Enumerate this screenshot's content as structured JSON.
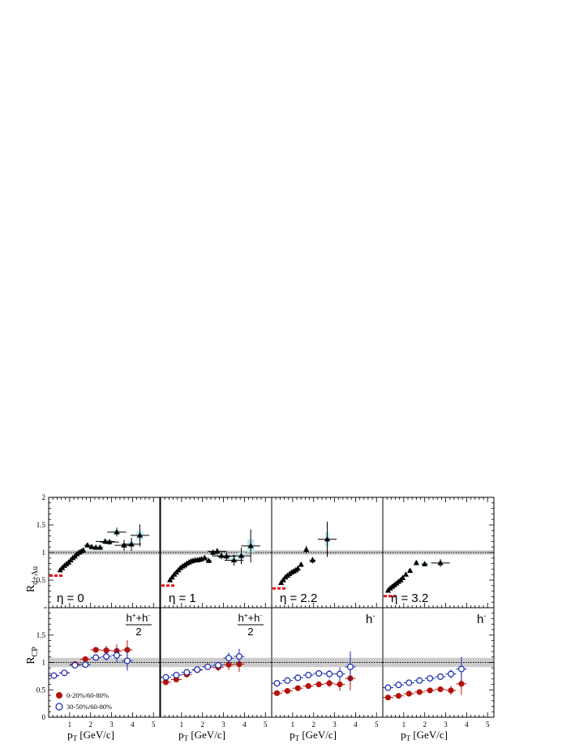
{
  "figure": {
    "ylabel_top_main": "R",
    "ylabel_top_sub": "d+Au",
    "ylabel_bottom_main": "R",
    "ylabel_bottom_sub": "CP",
    "xlabel_main": "p",
    "xlabel_sub": "T",
    "xlabel_rest": " [GeV/c]",
    "legend": [
      {
        "label": "0-20%/60-80%",
        "color": "#b5120c",
        "marker": "filled-circle"
      },
      {
        "label": "30-50%/60-80%",
        "color": "#1426b0",
        "marker": "open-circle"
      }
    ],
    "colors": {
      "rdau_marker": "#000000",
      "syst_band": "#bde8f2",
      "norm_band": "#cccccc",
      "red_dash": "#e8141b",
      "central_red": "#b5120c",
      "peripheral_blue": "#1426b0"
    }
  },
  "chart_data": [
    {
      "panel": "top-eta-0",
      "type": "scatter",
      "annotation": "η = 0",
      "xlim": [
        0,
        5.3
      ],
      "ylim": [
        0,
        2
      ],
      "xticks": [
        1,
        2,
        3,
        4,
        5
      ],
      "yticks": [
        "",
        "0.5",
        "1",
        "1.5",
        "2"
      ],
      "reference_line": 1,
      "series": [
        {
          "marker": "filled-triangle",
          "x": [
            0.55,
            0.65,
            0.75,
            0.85,
            0.95,
            1.05,
            1.15,
            1.25,
            1.35,
            1.45,
            1.55,
            1.65,
            1.85,
            2.05,
            2.25,
            2.45,
            2.7,
            2.9,
            3.25,
            3.6,
            3.95,
            4.35
          ],
          "y": [
            0.68,
            0.72,
            0.76,
            0.79,
            0.82,
            0.86,
            0.9,
            0.93,
            0.97,
            1.0,
            1.02,
            1.04,
            1.13,
            1.1,
            1.09,
            1.09,
            1.2,
            1.19,
            1.37,
            1.13,
            1.15,
            1.31
          ],
          "yerr": [
            0,
            0,
            0,
            0,
            0,
            0,
            0,
            0,
            0,
            0,
            0,
            0,
            0.03,
            0.03,
            0.03,
            0.04,
            0.05,
            0.05,
            0.08,
            0.1,
            0.12,
            0.2
          ]
        }
      ]
    },
    {
      "panel": "top-eta-1",
      "type": "scatter",
      "annotation": "η = 1",
      "xlim": [
        0,
        5.3
      ],
      "ylim": [
        0,
        2
      ],
      "xticks": [
        1,
        2,
        3,
        4,
        5
      ],
      "reference_line": 1,
      "series": [
        {
          "marker": "filled-triangle",
          "x": [
            0.45,
            0.55,
            0.65,
            0.75,
            0.85,
            0.95,
            1.05,
            1.15,
            1.25,
            1.35,
            1.45,
            1.55,
            1.65,
            1.75,
            1.85,
            1.95,
            2.1,
            2.3,
            2.5,
            2.7,
            2.9,
            3.15,
            3.5,
            3.85,
            4.3
          ],
          "y": [
            0.5,
            0.55,
            0.6,
            0.64,
            0.68,
            0.72,
            0.75,
            0.77,
            0.8,
            0.82,
            0.84,
            0.85,
            0.86,
            0.86,
            0.87,
            0.88,
            0.9,
            0.85,
            1.0,
            1.02,
            0.94,
            0.93,
            0.86,
            0.94,
            1.12
          ],
          "yerr": [
            0,
            0,
            0,
            0,
            0,
            0,
            0,
            0,
            0,
            0,
            0,
            0,
            0,
            0,
            0,
            0,
            0.03,
            0.04,
            0.05,
            0.06,
            0.06,
            0.07,
            0.1,
            0.15,
            0.3
          ]
        }
      ]
    },
    {
      "panel": "top-eta-2.2",
      "type": "scatter",
      "annotation": "η = 2.2",
      "xlim": [
        0,
        5.3
      ],
      "ylim": [
        0,
        2
      ],
      "xticks": [
        1,
        2,
        3,
        4,
        5
      ],
      "reference_line": 1,
      "series": [
        {
          "marker": "filled-triangle",
          "x": [
            0.45,
            0.55,
            0.65,
            0.75,
            0.85,
            0.95,
            1.05,
            1.15,
            1.25,
            1.4,
            1.65,
            1.95,
            2.65
          ],
          "y": [
            0.45,
            0.5,
            0.55,
            0.58,
            0.61,
            0.64,
            0.66,
            0.68,
            0.71,
            0.78,
            1.05,
            0.86,
            1.24
          ],
          "yerr": [
            0,
            0,
            0,
            0,
            0,
            0,
            0,
            0,
            0,
            0.04,
            0.07,
            0.06,
            0.32
          ]
        }
      ]
    },
    {
      "panel": "top-eta-3.2",
      "type": "scatter",
      "annotation": "η = 3.2",
      "xlim": [
        0,
        5.3
      ],
      "ylim": [
        0,
        2
      ],
      "xticks": [
        1,
        2,
        3,
        4,
        5
      ],
      "reference_line": 1,
      "series": [
        {
          "marker": "filled-triangle",
          "x": [
            0.25,
            0.35,
            0.45,
            0.55,
            0.65,
            0.75,
            0.85,
            0.95,
            1.1,
            1.3,
            1.6,
            2.0,
            2.75
          ],
          "y": [
            0.31,
            0.35,
            0.38,
            0.41,
            0.44,
            0.47,
            0.5,
            0.54,
            0.6,
            0.67,
            0.81,
            0.79,
            0.81
          ],
          "yerr": [
            0,
            0,
            0,
            0,
            0,
            0,
            0,
            0,
            0,
            0.02,
            0.03,
            0.04,
            0.07
          ]
        }
      ]
    },
    {
      "panel": "bottom-hpm-1",
      "type": "scatter",
      "label_numerator": "h",
      "label_sup1": "+",
      "label_plus": "+h",
      "label_sup2": "-",
      "label_denominator": "2",
      "xlim": [
        0,
        5.3
      ],
      "ylim": [
        0,
        2
      ],
      "xticks": [
        "",
        "1",
        "2",
        "3",
        "4",
        "5"
      ],
      "yticks": [
        "0",
        "0.5",
        "1",
        "1.5"
      ],
      "reference_line": 1,
      "series": [
        {
          "name": "0-20%/60-80%",
          "marker": "filled-circle",
          "x": [
            0.25,
            0.75,
            1.25,
            1.75,
            2.25,
            2.75,
            3.25,
            3.75
          ],
          "y": [
            0.76,
            0.81,
            0.97,
            1.06,
            1.23,
            1.22,
            1.21,
            1.23
          ],
          "yerr": [
            0.02,
            0.02,
            0.03,
            0.04,
            0.05,
            0.08,
            0.12,
            0.18
          ]
        },
        {
          "name": "30-50%/60-80%",
          "marker": "open-circle",
          "x": [
            0.25,
            0.75,
            1.25,
            1.75,
            2.25,
            2.75,
            3.25,
            3.75
          ],
          "y": [
            0.76,
            0.81,
            0.95,
            0.96,
            1.09,
            1.11,
            1.13,
            1.03
          ],
          "yerr": [
            0.02,
            0.02,
            0.03,
            0.04,
            0.05,
            0.08,
            0.12,
            0.18
          ]
        }
      ]
    },
    {
      "panel": "bottom-hpm-2",
      "type": "scatter",
      "label_numerator": "h",
      "label_sup1": "+",
      "label_plus": "+h",
      "label_sup2": "-",
      "label_denominator": "2",
      "xlim": [
        0,
        5.3
      ],
      "ylim": [
        0,
        2
      ],
      "xticks": [
        "",
        "1",
        "2",
        "3",
        "4",
        "5"
      ],
      "reference_line": 1,
      "series": [
        {
          "name": "0-20%/60-80%",
          "marker": "filled-circle",
          "x": [
            0.25,
            0.75,
            1.25,
            1.75,
            2.25,
            2.75,
            3.25,
            3.75
          ],
          "y": [
            0.64,
            0.69,
            0.78,
            0.86,
            0.92,
            0.91,
            0.96,
            0.97
          ],
          "yerr": [
            0.02,
            0.02,
            0.03,
            0.03,
            0.04,
            0.06,
            0.1,
            0.14
          ]
        },
        {
          "name": "30-50%/60-80%",
          "marker": "open-circle",
          "x": [
            0.25,
            0.75,
            1.25,
            1.75,
            2.25,
            2.75,
            3.25,
            3.75
          ],
          "y": [
            0.73,
            0.77,
            0.82,
            0.87,
            0.92,
            0.95,
            1.08,
            1.11
          ],
          "yerr": [
            0.02,
            0.02,
            0.03,
            0.03,
            0.04,
            0.06,
            0.1,
            0.14
          ]
        }
      ]
    },
    {
      "panel": "bottom-hminus-1",
      "type": "scatter",
      "label_main": "h",
      "label_sup": "-",
      "xlim": [
        0,
        5.3
      ],
      "ylim": [
        0,
        2
      ],
      "xticks": [
        "",
        "1",
        "2",
        "3",
        "4",
        "5"
      ],
      "reference_line": 1,
      "series": [
        {
          "name": "0-20%/60-80%",
          "marker": "filled-circle",
          "x": [
            0.25,
            0.75,
            1.25,
            1.75,
            2.25,
            2.75,
            3.25,
            3.75
          ],
          "y": [
            0.44,
            0.48,
            0.53,
            0.57,
            0.6,
            0.62,
            0.6,
            0.71
          ],
          "yerr": [
            0.02,
            0.02,
            0.03,
            0.04,
            0.05,
            0.07,
            0.12,
            0.22
          ]
        },
        {
          "name": "30-50%/60-80%",
          "marker": "open-circle",
          "x": [
            0.25,
            0.75,
            1.25,
            1.75,
            2.25,
            2.75,
            3.25,
            3.75
          ],
          "y": [
            0.62,
            0.67,
            0.72,
            0.77,
            0.8,
            0.79,
            0.79,
            0.92
          ],
          "yerr": [
            0.02,
            0.02,
            0.03,
            0.04,
            0.05,
            0.07,
            0.12,
            0.28
          ]
        }
      ]
    },
    {
      "panel": "bottom-hminus-2",
      "type": "scatter",
      "label_main": "h",
      "label_sup": "-",
      "xlim": [
        0,
        5.3
      ],
      "ylim": [
        0,
        2
      ],
      "xticks": [
        "",
        "1",
        "2",
        "3",
        "4",
        "5"
      ],
      "reference_line": 1,
      "series": [
        {
          "name": "0-20%/60-80%",
          "marker": "filled-circle",
          "x": [
            0.25,
            0.75,
            1.25,
            1.75,
            2.25,
            2.75,
            3.25,
            3.75
          ],
          "y": [
            0.36,
            0.39,
            0.43,
            0.46,
            0.49,
            0.51,
            0.49,
            0.61
          ],
          "yerr": [
            0.02,
            0.02,
            0.03,
            0.03,
            0.04,
            0.05,
            0.08,
            0.2
          ]
        },
        {
          "name": "30-50%/60-80%",
          "marker": "open-circle",
          "x": [
            0.25,
            0.75,
            1.25,
            1.75,
            2.25,
            2.75,
            3.25,
            3.75
          ],
          "y": [
            0.54,
            0.59,
            0.63,
            0.67,
            0.71,
            0.74,
            0.79,
            0.88
          ],
          "yerr": [
            0.02,
            0.02,
            0.03,
            0.03,
            0.04,
            0.05,
            0.08,
            0.22
          ]
        }
      ]
    }
  ]
}
